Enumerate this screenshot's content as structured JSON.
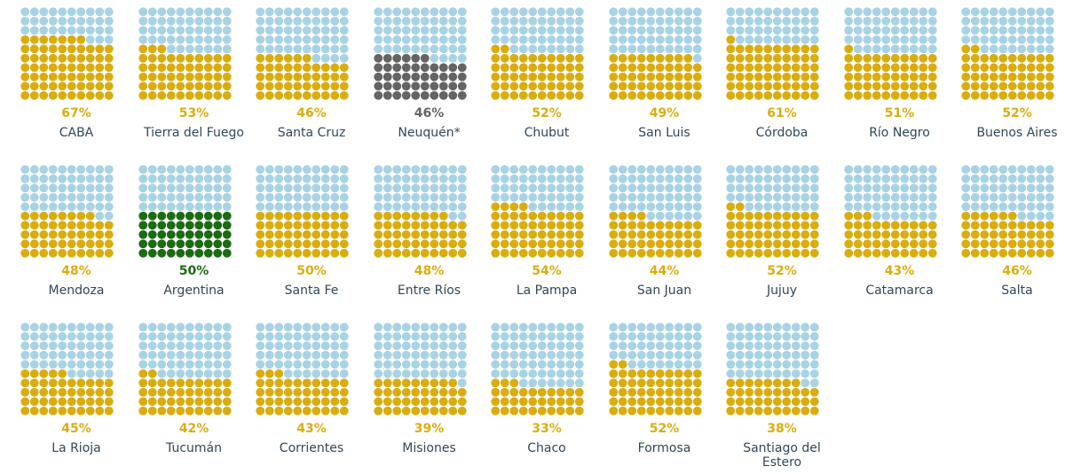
{
  "colors": {
    "empty": "#a8d3e4",
    "province": "#d9ad0f",
    "highlight_national": "#1b6b12",
    "highlight_special": "#646464"
  },
  "chart_data": {
    "type": "waffle",
    "grid": "10x10",
    "units": "percent",
    "items": [
      {
        "name": "CABA",
        "label": "67%",
        "value": 67,
        "style": "province"
      },
      {
        "name": "Tierra del Fuego",
        "label": "53%",
        "value": 53,
        "style": "province"
      },
      {
        "name": "Santa Cruz",
        "label": "46%",
        "value": 46,
        "style": "province"
      },
      {
        "name": "Neuquén*",
        "label": "46%",
        "value": 46,
        "style": "special"
      },
      {
        "name": "Chubut",
        "label": "52%",
        "value": 52,
        "style": "province"
      },
      {
        "name": "San Luis",
        "label": "49%",
        "value": 49,
        "style": "province"
      },
      {
        "name": "Córdoba",
        "label": "61%",
        "value": 61,
        "style": "province"
      },
      {
        "name": "Río Negro",
        "label": "51%",
        "value": 51,
        "style": "province"
      },
      {
        "name": "Buenos Aires",
        "label": "52%",
        "value": 52,
        "style": "province"
      },
      {
        "name": "Mendoza",
        "label": "48%",
        "value": 48,
        "style": "province"
      },
      {
        "name": "Argentina",
        "label": "50%",
        "value": 50,
        "style": "national"
      },
      {
        "name": "Santa Fe",
        "label": "50%",
        "value": 50,
        "style": "province"
      },
      {
        "name": "Entre Ríos",
        "label": "48%",
        "value": 48,
        "style": "province"
      },
      {
        "name": "La Pampa",
        "label": "54%",
        "value": 54,
        "style": "province"
      },
      {
        "name": "San Juan",
        "label": "44%",
        "value": 44,
        "style": "province"
      },
      {
        "name": "Jujuy",
        "label": "52%",
        "value": 52,
        "style": "province"
      },
      {
        "name": "Catamarca",
        "label": "43%",
        "value": 43,
        "style": "province"
      },
      {
        "name": "Salta",
        "label": "46%",
        "value": 46,
        "style": "province"
      },
      {
        "name": "La Rioja",
        "label": "45%",
        "value": 45,
        "style": "province"
      },
      {
        "name": "Tucumán",
        "label": "42%",
        "value": 42,
        "style": "province"
      },
      {
        "name": "Corrientes",
        "label": "43%",
        "value": 43,
        "style": "province"
      },
      {
        "name": "Misiones",
        "label": "39%",
        "value": 39,
        "style": "province"
      },
      {
        "name": "Chaco",
        "label": "33%",
        "value": 33,
        "style": "province"
      },
      {
        "name": "Formosa",
        "label": "52%",
        "value": 52,
        "style": "province"
      },
      {
        "name": "Santiago del Estero",
        "label": "38%",
        "value": 38,
        "style": "province"
      }
    ]
  }
}
